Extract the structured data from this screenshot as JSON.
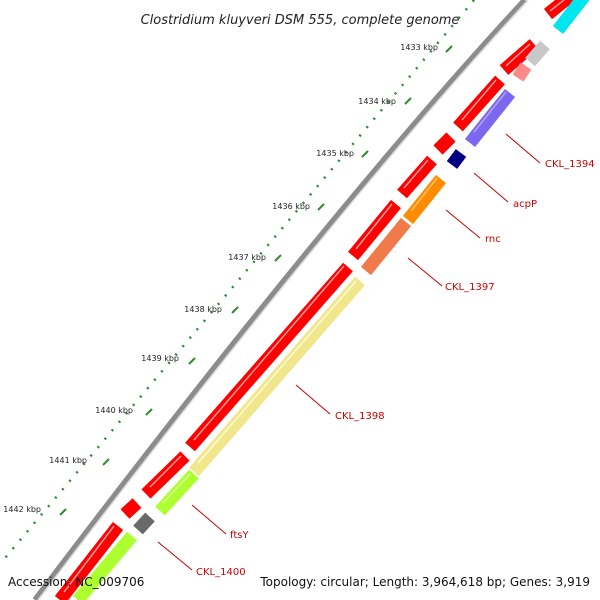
{
  "title": "Clostridium kluyveri DSM 555, complete genome",
  "footer": {
    "accession": "Accession: NC_009706",
    "summary": "Topology: circular; Length: 3,964,618 bp; Genes: 3,919"
  },
  "colors": {
    "backbone": "#8c8c8c",
    "forward_cds": "#ff0000",
    "ticks": "#2e8b2e",
    "label": "#cc0000"
  },
  "kbp_ticks": [
    "1433 kbp",
    "1434 kbp",
    "1435 kbp",
    "1436 kbp",
    "1437 kbp",
    "1438 kbp",
    "1439 kbp",
    "1440 kbp",
    "1441 kbp",
    "1442 kbp"
  ],
  "gene_labels": [
    "CKL_1394",
    "acpP",
    "rnc",
    "CKL_1397",
    "CKL_1398",
    "ftsY",
    "CKL_1400"
  ]
}
